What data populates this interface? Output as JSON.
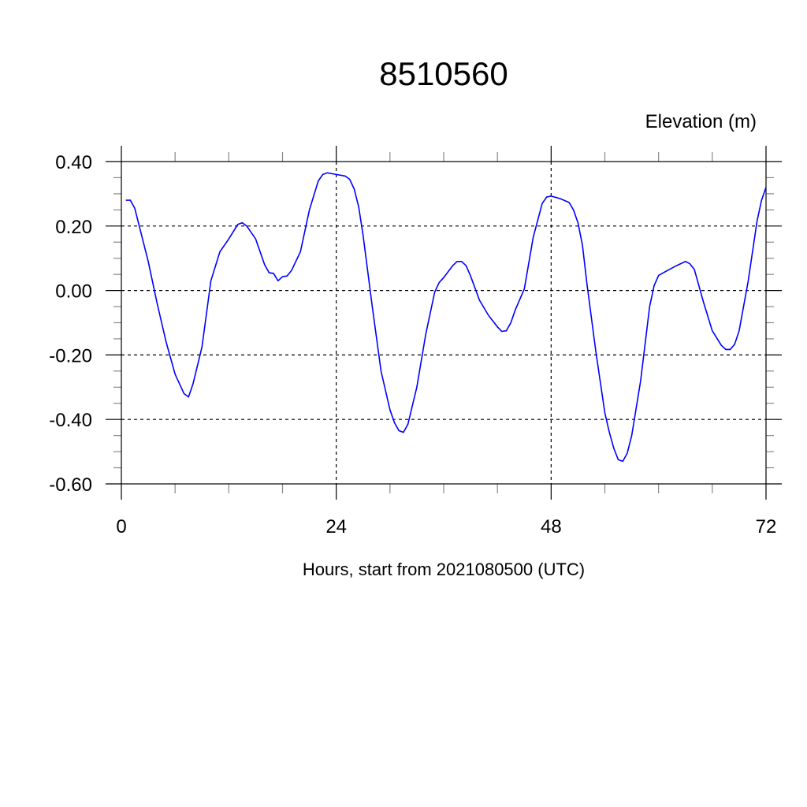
{
  "chart_data": {
    "type": "line",
    "title": "8510560",
    "ylabel": "Elevation (m)",
    "xlabel": "Hours, start from 2021080500 (UTC)",
    "xlim": [
      0,
      72
    ],
    "ylim": [
      -0.6,
      0.4
    ],
    "xticks": [
      0,
      24,
      48,
      72
    ],
    "xtick_labels": [
      "0",
      "24",
      "48",
      "72"
    ],
    "yticks": [
      0.4,
      0.2,
      0.0,
      -0.2,
      -0.4,
      -0.6
    ],
    "ytick_labels": [
      "0.40",
      "0.20",
      "0.00",
      "-0.20",
      "-0.40",
      "-0.60"
    ],
    "grid": true,
    "line_color": "#0000ff",
    "series": [
      {
        "x": [
          0.5,
          1,
          1.5,
          2,
          3,
          4,
          5,
          6,
          7,
          7.5,
          8,
          9,
          10,
          11,
          12,
          13,
          13.5,
          14,
          15,
          16,
          16.5,
          17,
          17.5,
          18,
          18.5,
          19,
          20,
          21,
          22,
          22.5,
          23,
          24,
          25,
          25.5,
          26,
          26.5,
          27,
          28,
          29,
          30,
          30.5,
          31,
          31.5,
          32,
          33,
          34,
          35,
          35.5,
          36,
          37,
          37.5,
          38,
          38.5,
          39,
          40,
          41,
          42,
          42.5,
          43,
          43.5,
          44,
          45,
          46,
          47,
          47.5,
          48,
          49,
          50,
          50.5,
          51,
          51.5,
          52,
          53,
          54,
          54.5,
          55,
          55.5,
          56,
          56.5,
          57,
          58,
          59,
          59.5,
          60,
          61,
          62,
          63,
          63.5,
          64,
          65,
          66,
          67,
          67.5,
          68,
          68.5,
          69,
          70,
          71,
          71.5,
          72
        ],
        "y": [
          0.28,
          0.28,
          0.255,
          0.2,
          0.09,
          -0.04,
          -0.16,
          -0.26,
          -0.32,
          -0.33,
          -0.29,
          -0.175,
          0.03,
          0.12,
          0.16,
          0.205,
          0.21,
          0.2,
          0.16,
          0.08,
          0.055,
          0.053,
          0.03,
          0.043,
          0.045,
          0.062,
          0.12,
          0.25,
          0.34,
          0.36,
          0.365,
          0.36,
          0.355,
          0.345,
          0.315,
          0.26,
          0.17,
          -0.045,
          -0.25,
          -0.37,
          -0.41,
          -0.435,
          -0.44,
          -0.415,
          -0.3,
          -0.135,
          -0.005,
          0.025,
          0.04,
          0.077,
          0.09,
          0.09,
          0.077,
          0.045,
          -0.03,
          -0.077,
          -0.113,
          -0.127,
          -0.125,
          -0.1,
          -0.06,
          0.005,
          0.165,
          0.27,
          0.29,
          0.293,
          0.285,
          0.273,
          0.25,
          0.21,
          0.14,
          0.02,
          -0.19,
          -0.38,
          -0.44,
          -0.49,
          -0.525,
          -0.53,
          -0.505,
          -0.45,
          -0.28,
          -0.05,
          0.015,
          0.047,
          0.062,
          0.077,
          0.09,
          0.083,
          0.065,
          -0.035,
          -0.125,
          -0.17,
          -0.183,
          -0.183,
          -0.167,
          -0.125,
          0.028,
          0.215,
          0.28,
          0.32
        ]
      }
    ]
  }
}
